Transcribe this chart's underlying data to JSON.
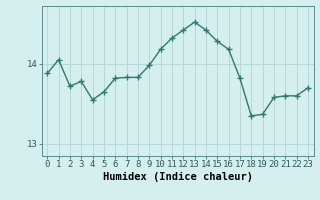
{
  "x": [
    0,
    1,
    2,
    3,
    4,
    5,
    6,
    7,
    8,
    9,
    10,
    11,
    12,
    13,
    14,
    15,
    16,
    17,
    18,
    19,
    20,
    21,
    22,
    23
  ],
  "y": [
    13.88,
    14.05,
    13.72,
    13.78,
    13.55,
    13.65,
    13.82,
    13.83,
    13.83,
    13.98,
    14.18,
    14.32,
    14.42,
    14.52,
    14.42,
    14.28,
    14.18,
    13.82,
    13.35,
    13.37,
    13.58,
    13.6,
    13.6,
    13.7
  ],
  "line_color": "#2d7a6e",
  "marker": "+",
  "marker_size": 4,
  "bg_color": "#d5efef",
  "grid_color": "#b8d8d8",
  "xlabel": "Humidex (Indice chaleur)",
  "yticks": [
    13,
    14
  ],
  "ylim": [
    12.85,
    14.72
  ],
  "xlim": [
    -0.5,
    23.5
  ],
  "xlabel_fontsize": 7.5,
  "tick_fontsize": 6.5,
  "linewidth": 1.0
}
